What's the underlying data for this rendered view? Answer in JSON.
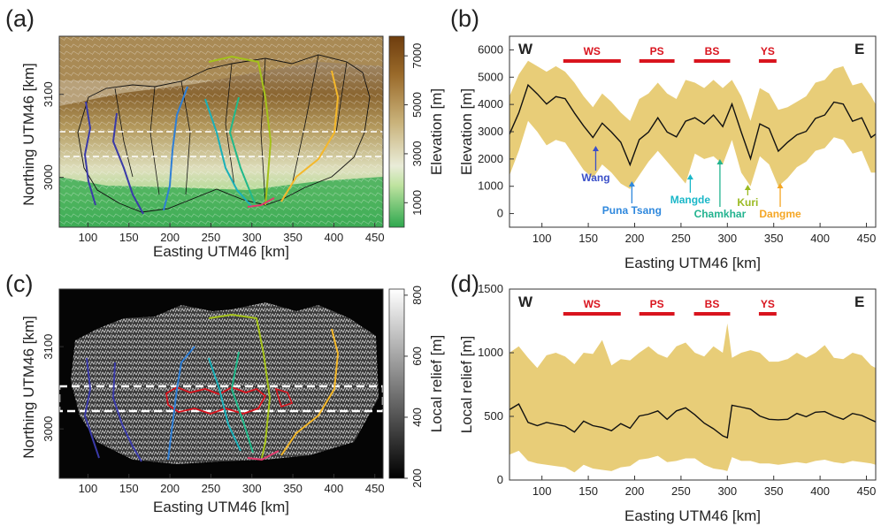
{
  "panels": {
    "a": {
      "label": "(a)",
      "xlabel": "Easting UTM46 [km]",
      "ylabel": "Northing UTM46 [km]",
      "xticks": [
        "100",
        "150",
        "200",
        "250",
        "300",
        "350",
        "400",
        "450"
      ],
      "yticks": [
        "3000",
        "3100"
      ],
      "colorbar": {
        "label": "Elevation [m]",
        "ticks": [
          "1000",
          "3000",
          "5000",
          "7000"
        ]
      }
    },
    "c": {
      "label": "(c)",
      "xlabel": "Easting UTM46 [km]",
      "ylabel": "Northing UTM46 [km]",
      "xticks": [
        "100",
        "150",
        "200",
        "250",
        "300",
        "350",
        "400",
        "450"
      ],
      "yticks": [
        "3000",
        "3100"
      ],
      "colorbar": {
        "label": "Local relief [m]",
        "ticks": [
          "200",
          "400",
          "600",
          "800"
        ]
      }
    }
  },
  "rivers": [
    {
      "name": "Wang",
      "color": "#3a3aa8"
    },
    {
      "name": "Puna Tsang",
      "color": "#2f7fd6"
    },
    {
      "name": "Mangde",
      "color": "#1ab0b8"
    },
    {
      "name": "Chamkhar",
      "color": "#20b98a"
    },
    {
      "name": "Kuri",
      "color": "#a4c21a"
    },
    {
      "name": "Dangme",
      "color": "#f5b82a"
    }
  ],
  "chart_data": [
    {
      "panel": "(b)",
      "type": "area",
      "xlabel": "Easting UTM46 [km]",
      "ylabel": "Elevation [m]",
      "xlim": [
        65,
        460
      ],
      "ylim": [
        -500,
        6500
      ],
      "xticks": [
        100,
        150,
        200,
        250,
        300,
        350,
        400,
        450
      ],
      "yticks": [
        0,
        1000,
        2000,
        3000,
        4000,
        5000,
        6000
      ],
      "direction_labels": [
        "W",
        "E"
      ],
      "regions": [
        {
          "name": "WS",
          "x": [
            123,
            185
          ]
        },
        {
          "name": "PS",
          "x": [
            205,
            243
          ]
        },
        {
          "name": "BS",
          "x": [
            264,
            303
          ]
        },
        {
          "name": "YS",
          "x": [
            334,
            353
          ]
        }
      ],
      "annotations": [
        {
          "text": "Wang",
          "x": 158,
          "color": "#3a4fc8"
        },
        {
          "text": "Puna Tsang",
          "x": 197,
          "color": "#2f88dd"
        },
        {
          "text": "Mangde",
          "x": 260,
          "color": "#1ab7c8"
        },
        {
          "text": "Chamkhar",
          "x": 292,
          "color": "#22b38f"
        },
        {
          "text": "Kuri",
          "x": 322,
          "color": "#9aba22"
        },
        {
          "text": "Dangme",
          "x": 357,
          "color": "#f5a623"
        }
      ],
      "band_color": "#e8cd78",
      "x": [
        65,
        75,
        85,
        95,
        105,
        115,
        125,
        135,
        145,
        155,
        165,
        175,
        185,
        195,
        205,
        215,
        225,
        235,
        245,
        255,
        265,
        275,
        285,
        295,
        305,
        315,
        325,
        335,
        345,
        355,
        365,
        375,
        385,
        395,
        405,
        415,
        425,
        435,
        445,
        455,
        460
      ],
      "series": [
        {
          "name": "mean",
          "values": [
            2900,
            3700,
            4700,
            4400,
            4000,
            4300,
            4200,
            3700,
            3200,
            2800,
            3300,
            3000,
            2600,
            1800,
            2700,
            3000,
            3500,
            3000,
            2800,
            3400,
            3500,
            3300,
            3600,
            3200,
            4000,
            3000,
            2000,
            3300,
            3100,
            2300,
            2600,
            2900,
            3000,
            3500,
            3600,
            4100,
            4000,
            3400,
            3500,
            2800,
            2900
          ]
        },
        {
          "name": "min",
          "values": [
            1400,
            2300,
            3400,
            3000,
            2500,
            2700,
            2600,
            2100,
            1600,
            1300,
            1800,
            1500,
            1100,
            900,
            1400,
            1900,
            2300,
            1900,
            1500,
            1100,
            2200,
            2000,
            2100,
            1800,
            2700,
            1500,
            1000,
            2100,
            1800,
            1000,
            1300,
            1700,
            1900,
            2300,
            2400,
            2800,
            2700,
            2200,
            2300,
            1500,
            1500
          ]
        },
        {
          "name": "max",
          "values": [
            4300,
            5100,
            5600,
            5400,
            5200,
            5400,
            5200,
            4800,
            4300,
            3900,
            4400,
            4100,
            3700,
            3400,
            4200,
            4400,
            4800,
            4400,
            4200,
            4900,
            4800,
            4600,
            4900,
            4600,
            4900,
            4300,
            3400,
            4600,
            4400,
            3800,
            3900,
            4100,
            4300,
            4800,
            4900,
            5300,
            5400,
            4700,
            4800,
            4300,
            4000
          ]
        }
      ]
    },
    {
      "panel": "(d)",
      "type": "area",
      "xlabel": "Easting UTM46 [km]",
      "ylabel": "Local relief [m]",
      "xlim": [
        65,
        460
      ],
      "ylim": [
        0,
        1500
      ],
      "xticks": [
        100,
        150,
        200,
        250,
        300,
        350,
        400,
        450
      ],
      "yticks": [
        0,
        500,
        1000,
        1500
      ],
      "direction_labels": [
        "W",
        "E"
      ],
      "regions": [
        {
          "name": "WS",
          "x": [
            123,
            185
          ]
        },
        {
          "name": "PS",
          "x": [
            205,
            243
          ]
        },
        {
          "name": "BS",
          "x": [
            264,
            303
          ]
        },
        {
          "name": "YS",
          "x": [
            334,
            353
          ]
        }
      ],
      "band_color": "#e8cd78",
      "x": [
        65,
        75,
        85,
        95,
        105,
        115,
        125,
        135,
        145,
        155,
        165,
        175,
        185,
        195,
        205,
        215,
        225,
        235,
        245,
        255,
        265,
        275,
        285,
        295,
        300,
        305,
        315,
        325,
        335,
        345,
        355,
        365,
        375,
        385,
        395,
        405,
        415,
        425,
        435,
        445,
        455,
        460
      ],
      "series": [
        {
          "name": "mean",
          "values": [
            550,
            600,
            450,
            430,
            450,
            440,
            420,
            380,
            460,
            430,
            410,
            390,
            440,
            410,
            500,
            520,
            540,
            480,
            540,
            570,
            510,
            450,
            400,
            350,
            330,
            590,
            570,
            560,
            500,
            480,
            470,
            480,
            520,
            500,
            530,
            540,
            500,
            480,
            520,
            510,
            470,
            460
          ]
        },
        {
          "name": "min",
          "values": [
            200,
            230,
            150,
            130,
            120,
            110,
            100,
            60,
            120,
            90,
            80,
            70,
            100,
            110,
            160,
            170,
            190,
            140,
            150,
            170,
            170,
            120,
            90,
            80,
            70,
            180,
            150,
            150,
            130,
            130,
            120,
            130,
            140,
            130,
            150,
            160,
            140,
            130,
            150,
            140,
            130,
            120
          ]
        },
        {
          "name": "max",
          "values": [
            1000,
            1050,
            960,
            880,
            980,
            1000,
            970,
            910,
            1000,
            990,
            1100,
            900,
            950,
            940,
            1000,
            1050,
            990,
            960,
            1050,
            1080,
            1000,
            970,
            1050,
            1000,
            1230,
            960,
            1000,
            1020,
            1000,
            930,
            930,
            950,
            1000,
            960,
            1000,
            1060,
            960,
            950,
            1000,
            980,
            900,
            880
          ]
        }
      ]
    }
  ]
}
